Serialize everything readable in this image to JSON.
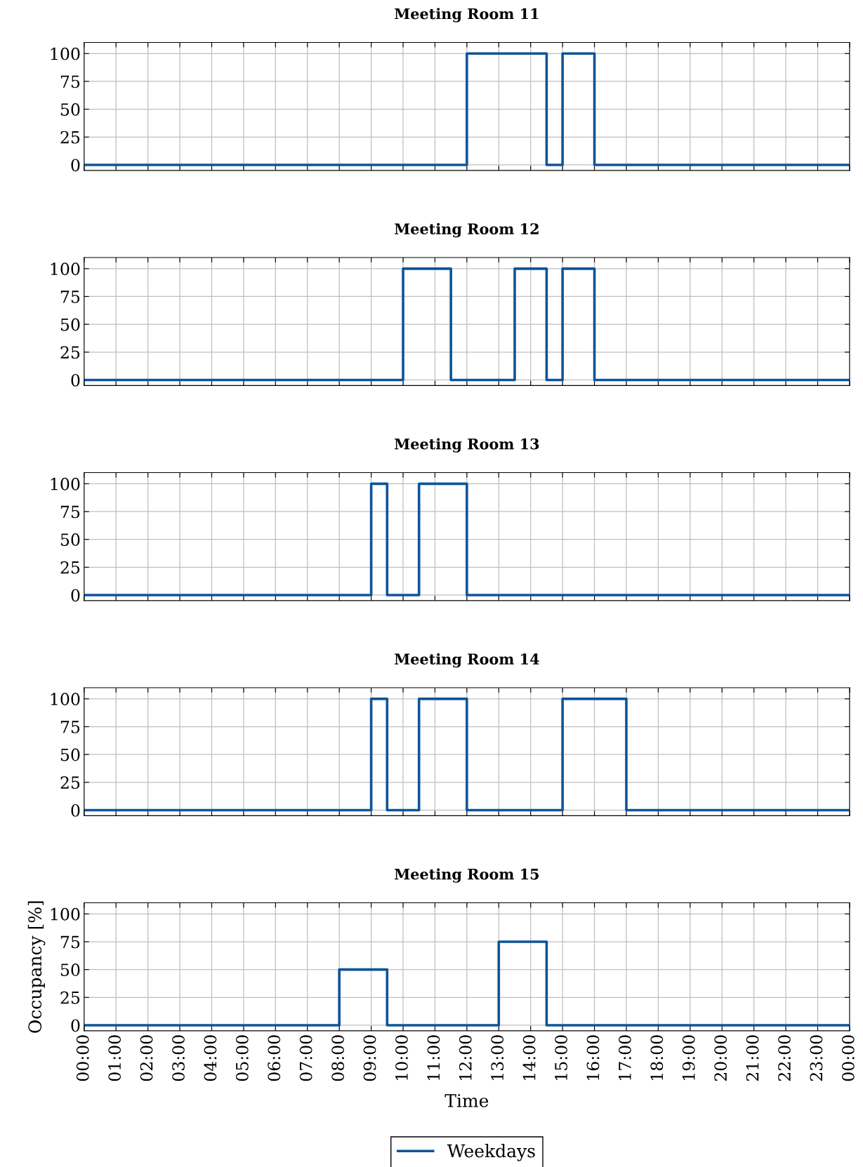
{
  "chart_data": [
    {
      "type": "step",
      "title": "Meeting Room 11",
      "x": [
        0,
        12,
        14.5,
        15,
        16,
        24
      ],
      "series": [
        {
          "color": "#0f5499",
          "values": [
            0,
            100,
            0,
            100,
            0,
            0
          ]
        }
      ],
      "xlim": [
        0,
        24
      ],
      "ylim": [
        -5,
        110
      ],
      "yticks": [
        0,
        25,
        50,
        75,
        100
      ],
      "xticks": [
        {
          "value": 0,
          "label": null
        },
        {
          "value": 1,
          "label": null
        },
        {
          "value": 2,
          "label": null
        },
        {
          "value": 3,
          "label": null
        },
        {
          "value": 4,
          "label": null
        },
        {
          "value": 5,
          "label": null
        },
        {
          "value": 6,
          "label": null
        },
        {
          "value": 7,
          "label": null
        },
        {
          "value": 8,
          "label": null
        },
        {
          "value": 9,
          "label": null
        },
        {
          "value": 10,
          "label": null
        },
        {
          "value": 11,
          "label": null
        },
        {
          "value": 12,
          "label": null
        },
        {
          "value": 13,
          "label": null
        },
        {
          "value": 14,
          "label": null
        },
        {
          "value": 15,
          "label": null
        },
        {
          "value": 16,
          "label": null
        },
        {
          "value": 17,
          "label": null
        },
        {
          "value": 18,
          "label": null
        },
        {
          "value": 19,
          "label": null
        },
        {
          "value": 20,
          "label": null
        },
        {
          "value": 21,
          "label": null
        },
        {
          "value": 22,
          "label": null
        },
        {
          "value": 23,
          "label": null
        },
        {
          "value": 24,
          "label": null
        }
      ],
      "tick_labels": "y",
      "grid": true
    },
    {
      "type": "step",
      "title": "Meeting Room 12",
      "x": [
        0,
        10,
        11.5,
        13.5,
        14.5,
        15,
        16,
        24
      ],
      "series": [
        {
          "color": "#0f5499",
          "values": [
            0,
            100,
            0,
            100,
            0,
            100,
            0,
            0
          ]
        }
      ],
      "xlim": [
        0,
        24
      ],
      "ylim": [
        -5,
        110
      ],
      "yticks": [
        0,
        25,
        50,
        75,
        100
      ],
      "xticks": [
        {
          "value": 0,
          "label": null
        },
        {
          "value": 1,
          "label": null
        },
        {
          "value": 2,
          "label": null
        },
        {
          "value": 3,
          "label": null
        },
        {
          "value": 4,
          "label": null
        },
        {
          "value": 5,
          "label": null
        },
        {
          "value": 6,
          "label": null
        },
        {
          "value": 7,
          "label": null
        },
        {
          "value": 8,
          "label": null
        },
        {
          "value": 9,
          "label": null
        },
        {
          "value": 10,
          "label": null
        },
        {
          "value": 11,
          "label": null
        },
        {
          "value": 12,
          "label": null
        },
        {
          "value": 13,
          "label": null
        },
        {
          "value": 14,
          "label": null
        },
        {
          "value": 15,
          "label": null
        },
        {
          "value": 16,
          "label": null
        },
        {
          "value": 17,
          "label": null
        },
        {
          "value": 18,
          "label": null
        },
        {
          "value": 19,
          "label": null
        },
        {
          "value": 20,
          "label": null
        },
        {
          "value": 21,
          "label": null
        },
        {
          "value": 22,
          "label": null
        },
        {
          "value": 23,
          "label": null
        },
        {
          "value": 24,
          "label": null
        }
      ],
      "tick_labels": "y",
      "grid": true
    },
    {
      "type": "step",
      "title": "Meeting Room 13",
      "x": [
        0,
        9,
        9.5,
        10.5,
        12,
        24
      ],
      "series": [
        {
          "color": "#0f5499",
          "values": [
            0,
            100,
            0,
            100,
            0,
            0
          ]
        }
      ],
      "xlim": [
        0,
        24
      ],
      "ylim": [
        -5,
        110
      ],
      "yticks": [
        0,
        25,
        50,
        75,
        100
      ],
      "xticks": [
        {
          "value": 0,
          "label": null
        },
        {
          "value": 1,
          "label": null
        },
        {
          "value": 2,
          "label": null
        },
        {
          "value": 3,
          "label": null
        },
        {
          "value": 4,
          "label": null
        },
        {
          "value": 5,
          "label": null
        },
        {
          "value": 6,
          "label": null
        },
        {
          "value": 7,
          "label": null
        },
        {
          "value": 8,
          "label": null
        },
        {
          "value": 9,
          "label": null
        },
        {
          "value": 10,
          "label": null
        },
        {
          "value": 11,
          "label": null
        },
        {
          "value": 12,
          "label": null
        },
        {
          "value": 13,
          "label": null
        },
        {
          "value": 14,
          "label": null
        },
        {
          "value": 15,
          "label": null
        },
        {
          "value": 16,
          "label": null
        },
        {
          "value": 17,
          "label": null
        },
        {
          "value": 18,
          "label": null
        },
        {
          "value": 19,
          "label": null
        },
        {
          "value": 20,
          "label": null
        },
        {
          "value": 21,
          "label": null
        },
        {
          "value": 22,
          "label": null
        },
        {
          "value": 23,
          "label": null
        },
        {
          "value": 24,
          "label": null
        }
      ],
      "tick_labels": "y",
      "grid": true
    },
    {
      "type": "step",
      "title": "Meeting Room 14",
      "x": [
        0,
        9,
        9.5,
        10.5,
        12,
        15,
        17,
        24
      ],
      "series": [
        {
          "color": "#0f5499",
          "values": [
            0,
            100,
            0,
            100,
            0,
            100,
            0,
            0
          ]
        }
      ],
      "xlim": [
        0,
        24
      ],
      "ylim": [
        -5,
        110
      ],
      "yticks": [
        0,
        25,
        50,
        75,
        100
      ],
      "xticks": [
        {
          "value": 0,
          "label": null
        },
        {
          "value": 1,
          "label": null
        },
        {
          "value": 2,
          "label": null
        },
        {
          "value": 3,
          "label": null
        },
        {
          "value": 4,
          "label": null
        },
        {
          "value": 5,
          "label": null
        },
        {
          "value": 6,
          "label": null
        },
        {
          "value": 7,
          "label": null
        },
        {
          "value": 8,
          "label": null
        },
        {
          "value": 9,
          "label": null
        },
        {
          "value": 10,
          "label": null
        },
        {
          "value": 11,
          "label": null
        },
        {
          "value": 12,
          "label": null
        },
        {
          "value": 13,
          "label": null
        },
        {
          "value": 14,
          "label": null
        },
        {
          "value": 15,
          "label": null
        },
        {
          "value": 16,
          "label": null
        },
        {
          "value": 17,
          "label": null
        },
        {
          "value": 18,
          "label": null
        },
        {
          "value": 19,
          "label": null
        },
        {
          "value": 20,
          "label": null
        },
        {
          "value": 21,
          "label": null
        },
        {
          "value": 22,
          "label": null
        },
        {
          "value": 23,
          "label": null
        },
        {
          "value": 24,
          "label": null
        }
      ],
      "tick_labels": "y",
      "grid": true
    },
    {
      "type": "step",
      "title": "Meeting Room 15",
      "xlabel": "Time",
      "ylabel": "Occupancy [%]",
      "x": [
        0,
        8,
        9.5,
        13,
        14.5,
        24
      ],
      "series": [
        {
          "name": "Weekdays",
          "color": "#0f5499",
          "values": [
            0,
            50,
            0,
            75,
            0,
            0
          ]
        }
      ],
      "xlim": [
        0,
        24
      ],
      "ylim": [
        -5,
        110
      ],
      "yticks": [
        0,
        25,
        50,
        75,
        100
      ],
      "xticks": [
        {
          "value": 0,
          "label": "00:00"
        },
        {
          "value": 1,
          "label": "01:00"
        },
        {
          "value": 2,
          "label": "02:00"
        },
        {
          "value": 3,
          "label": "03:00"
        },
        {
          "value": 4,
          "label": "04:00"
        },
        {
          "value": 5,
          "label": "05:00"
        },
        {
          "value": 6,
          "label": "06:00"
        },
        {
          "value": 7,
          "label": "07:00"
        },
        {
          "value": 8,
          "label": "08:00"
        },
        {
          "value": 9,
          "label": "09:00"
        },
        {
          "value": 10,
          "label": "10:00"
        },
        {
          "value": 11,
          "label": "11:00"
        },
        {
          "value": 12,
          "label": "12:00"
        },
        {
          "value": 13,
          "label": "13:00"
        },
        {
          "value": 14,
          "label": "14:00"
        },
        {
          "value": 15,
          "label": "15:00"
        },
        {
          "value": 16,
          "label": "16:00"
        },
        {
          "value": 17,
          "label": "17:00"
        },
        {
          "value": 18,
          "label": "18:00"
        },
        {
          "value": 19,
          "label": "19:00"
        },
        {
          "value": 20,
          "label": "20:00"
        },
        {
          "value": 21,
          "label": "21:00"
        },
        {
          "value": 22,
          "label": "22:00"
        },
        {
          "value": 23,
          "label": "23:00"
        },
        {
          "value": 24,
          "label": "00:00"
        }
      ],
      "grid": true,
      "legend": "bottom"
    }
  ]
}
